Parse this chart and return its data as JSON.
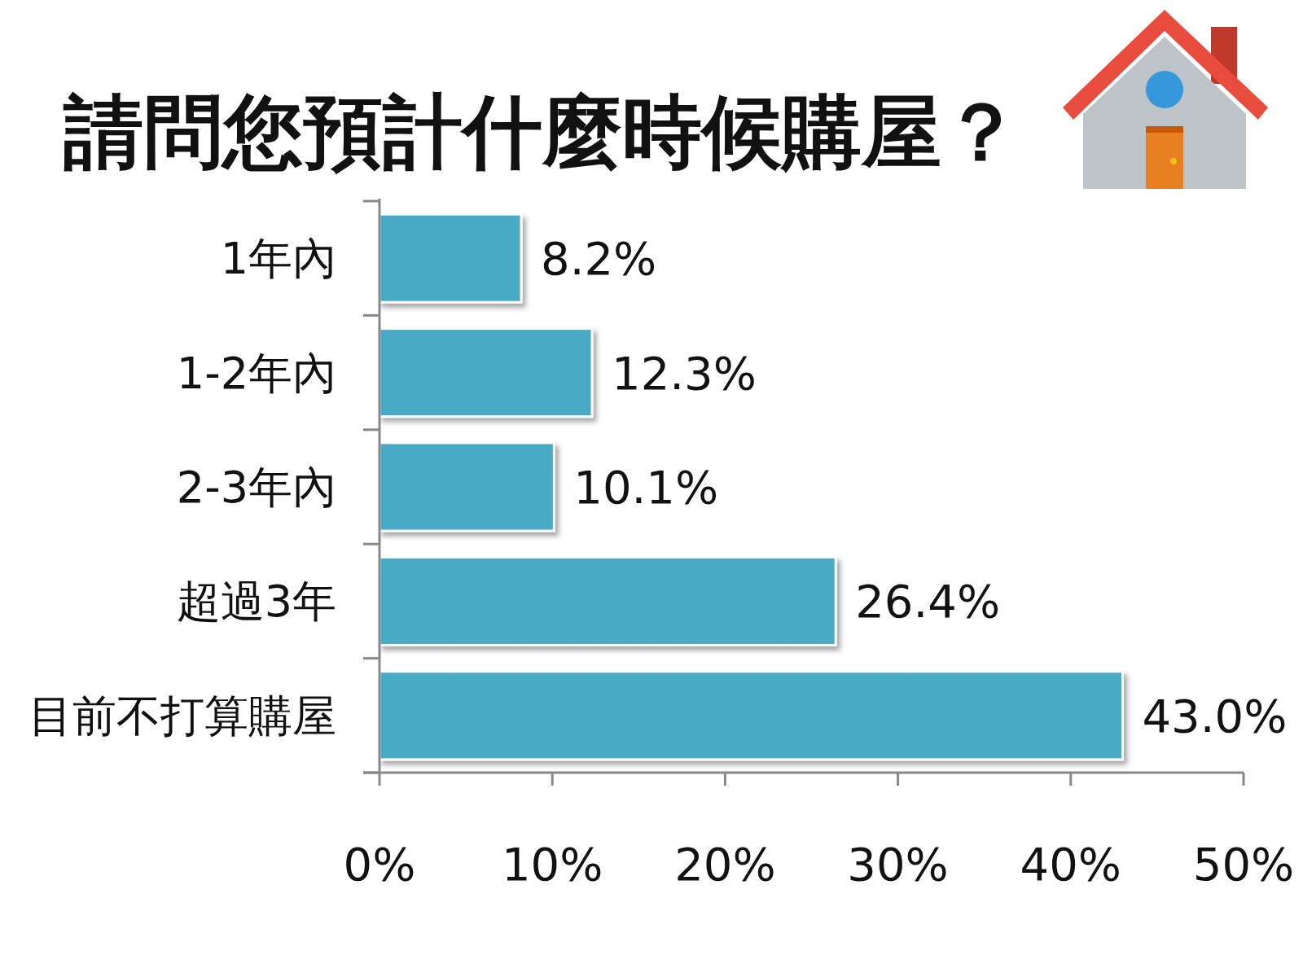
{
  "chart_data": {
    "type": "bar",
    "orientation": "horizontal",
    "title": "請問您預計什麼時候購屋？",
    "categories": [
      "1年內",
      "1-2年內",
      "2-3年內",
      "超過3年",
      "目前不打算購屋"
    ],
    "values": [
      8.2,
      12.3,
      10.1,
      26.4,
      43.0
    ],
    "value_labels": [
      "8.2%",
      "12.3%",
      "10.1%",
      "26.4%",
      "43.0%"
    ],
    "color": "#4aaac5",
    "xlim": [
      0,
      50
    ],
    "xticks": [
      {
        "value": 0,
        "label": "0%"
      },
      {
        "value": 10,
        "label": "10%"
      },
      {
        "value": 20,
        "label": "20%"
      },
      {
        "value": 30,
        "label": "30%"
      },
      {
        "value": 40,
        "label": "40%"
      },
      {
        "value": 50,
        "label": "50%"
      }
    ]
  }
}
